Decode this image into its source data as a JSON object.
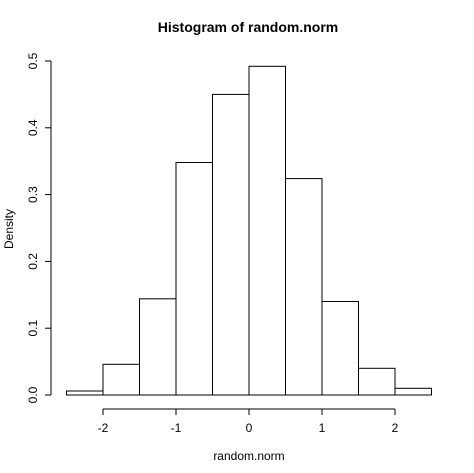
{
  "chart_data": {
    "type": "bar",
    "title": "Histogram of random.norm",
    "xlabel": "random.norm",
    "ylabel": "Density",
    "bins": [
      {
        "start": -2.5,
        "end": -2.0,
        "density": 0.006
      },
      {
        "start": -2.0,
        "end": -1.5,
        "density": 0.046
      },
      {
        "start": -1.5,
        "end": -1.0,
        "density": 0.144
      },
      {
        "start": -1.0,
        "end": -0.5,
        "density": 0.348
      },
      {
        "start": -0.5,
        "end": 0.0,
        "density": 0.45
      },
      {
        "start": 0.0,
        "end": 0.5,
        "density": 0.492
      },
      {
        "start": 0.5,
        "end": 1.0,
        "density": 0.324
      },
      {
        "start": 1.0,
        "end": 1.5,
        "density": 0.14
      },
      {
        "start": 1.5,
        "end": 2.0,
        "density": 0.04
      },
      {
        "start": 2.0,
        "end": 2.5,
        "density": 0.01
      }
    ],
    "xticks": [
      -2,
      -1,
      0,
      1,
      2
    ],
    "xtick_labels": [
      "-2",
      "-1",
      "0",
      "1",
      "2"
    ],
    "yticks": [
      0.0,
      0.1,
      0.2,
      0.3,
      0.4,
      0.5
    ],
    "ytick_labels": [
      "0.0",
      "0.1",
      "0.2",
      "0.3",
      "0.4",
      "0.5"
    ],
    "xlim": [
      -2.5,
      2.5
    ],
    "ylim": [
      0,
      0.5
    ],
    "grid": false,
    "legend": "none"
  }
}
